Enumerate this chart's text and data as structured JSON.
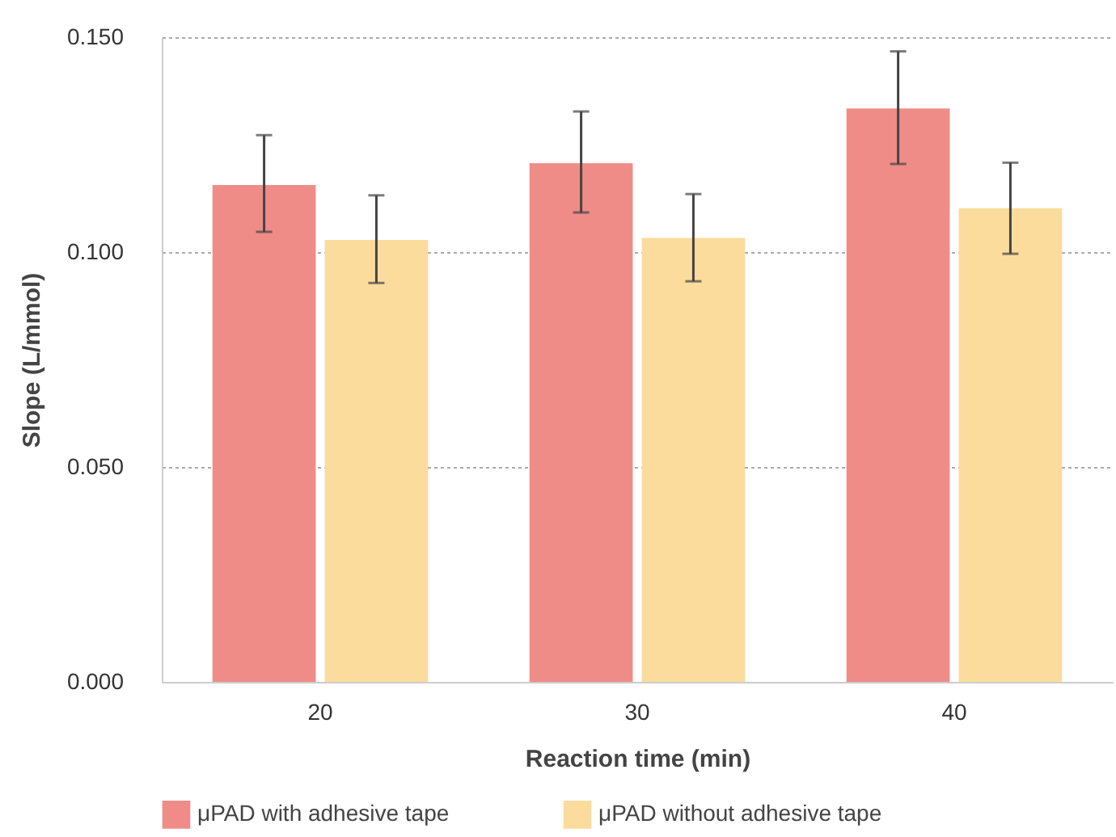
{
  "chart_data": {
    "type": "bar",
    "xlabel": "Reaction time (min)",
    "ylabel": "Slope (L/mmol)",
    "categories": [
      "20",
      "30",
      "40"
    ],
    "series": [
      {
        "name": "μPAD with adhesive tape",
        "color": "#f08c87",
        "values": [
          0.1156,
          0.1207,
          0.1334
        ],
        "errors": [
          [
            0.1047,
            0.1272
          ],
          [
            0.1092,
            0.1327
          ],
          [
            0.1205,
            0.1467
          ]
        ]
      },
      {
        "name": "μPAD without adhesive tape",
        "color": "#fbdc9d",
        "values": [
          0.1028,
          0.1033,
          0.1102
        ],
        "errors": [
          [
            0.0928,
            0.1132
          ],
          [
            0.0932,
            0.1135
          ],
          [
            0.0996,
            0.1208
          ]
        ]
      }
    ],
    "ylim": [
      0,
      0.15
    ],
    "yticks": [
      {
        "value": 0,
        "label": "0.000"
      },
      {
        "value": 0.05,
        "label": "0.050"
      },
      {
        "value": 0.1,
        "label": "0.100"
      },
      {
        "value": 0.15,
        "label": "0.150"
      }
    ],
    "grid": "y",
    "legend": "bottom"
  }
}
